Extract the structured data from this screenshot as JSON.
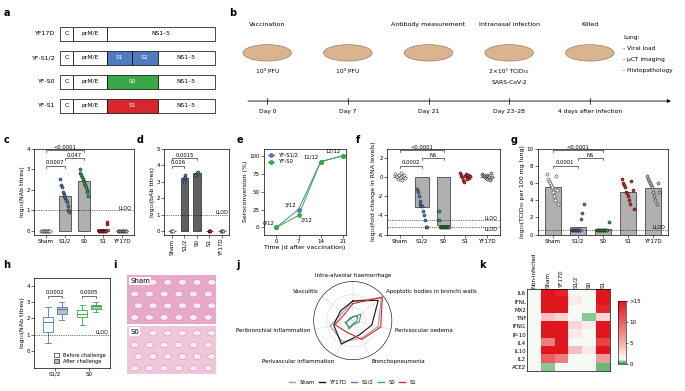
{
  "diagrams": [
    {
      "panel": "a",
      "type": "constructs",
      "constructs": [
        {
          "name": "YF17D",
          "segments": [
            {
              "label": "C"
            },
            {
              "label": "prM/E"
            },
            {
              "label": "NS1–5"
            }
          ]
        },
        {
          "name": "YF-S1/2",
          "segments": [
            {
              "label": "C"
            },
            {
              "label": "prM/E"
            },
            {
              "label": "S1",
              "color": "#4f7cc0"
            },
            {
              "label": "S2",
              "color": "#4f7cc0"
            },
            {
              "label": "NS1–5"
            }
          ]
        },
        {
          "name": "YF-S0",
          "segments": [
            {
              "label": "C"
            },
            {
              "label": "prM/E"
            },
            {
              "label": "S0",
              "color": "#3aa84a"
            },
            {
              "label": "NS1–5"
            }
          ]
        },
        {
          "name": "YF-S1",
          "segments": [
            {
              "label": "C"
            },
            {
              "label": "prM/E"
            },
            {
              "label": "S1",
              "color": "#d8262c"
            },
            {
              "label": "NS1–5"
            }
          ]
        }
      ]
    },
    {
      "panel": "b",
      "type": "timeline",
      "events": [
        {
          "label": "Vaccination",
          "details": [
            "10³ PFU"
          ],
          "time": "Day 0"
        },
        {
          "details": [
            "10³ PFU"
          ],
          "time": "Day 7"
        },
        {
          "label": "Antibody measurement",
          "details": [],
          "time": "Day 21"
        },
        {
          "label": "Intranasal infection",
          "details": [
            "2×10⁵ TCID₅₀",
            "SARS-CoV-2"
          ],
          "time": "Day 23–28"
        },
        {
          "label": "Killed",
          "details": [],
          "time": "4 days after infection"
        }
      ],
      "readout": [
        "Lung:",
        "- Viral load",
        "- µCT imaging",
        "- Histopathology"
      ]
    },
    {
      "panel": "i",
      "type": "images",
      "images": [
        "Sham",
        "S0"
      ]
    }
  ],
  "chart_data": [
    {
      "panel": "c",
      "type": "dot_bar",
      "categories": [
        "Sham",
        "S1/2",
        "S0",
        "S1",
        "YF17D"
      ],
      "colors": [
        "#ffffff",
        "#4f7cc0",
        "#3aa84a",
        "#d8262c",
        "#bfbfbf"
      ],
      "color": "#b0b0b0",
      "values": [
        0,
        1.7,
        2.4,
        0.05,
        0
      ],
      "points": [
        [
          0,
          0,
          0,
          0,
          0,
          0,
          0,
          0,
          0,
          0,
          0,
          0
        ],
        [
          2.5,
          2.2,
          2.1,
          1.9,
          1.8,
          1.7,
          1.6,
          1.5,
          1.4,
          1.2,
          1.0,
          0.9
        ],
        [
          3.0,
          2.8,
          2.7,
          2.6,
          2.5,
          2.4,
          2.3,
          2.2,
          2.1,
          2.0,
          1.9,
          1.7
        ],
        [
          0,
          0,
          0,
          0,
          0,
          0,
          0,
          0,
          0,
          0,
          0.3,
          0.4
        ],
        [
          0,
          0,
          0,
          0,
          0,
          0,
          0,
          0,
          0,
          0,
          0,
          0
        ]
      ],
      "ylabel": "log₁₀(NAb titres)",
      "ylim": [
        -0.2,
        4
      ],
      "yticks": [
        0,
        1,
        2,
        3,
        4
      ],
      "reference_lines": [
        {
          "value": 1,
          "label": "LLOQ"
        }
      ],
      "comparisons": [
        {
          "from": "Sham",
          "to": "S1/2",
          "label": "0.0007"
        },
        {
          "from": "Sham",
          "to": "S0",
          "label": "<0.0001"
        },
        {
          "from": "S1/2",
          "to": "S0",
          "label": "0.047"
        }
      ]
    },
    {
      "panel": "d",
      "type": "dot_bar",
      "categories": [
        "Sham",
        "S1/2",
        "S0",
        "S1",
        "YF17D"
      ],
      "colors": [
        "#ffffff",
        "#4f7cc0",
        "#3aa84a",
        "#d8262c",
        "#bfbfbf"
      ],
      "color": "#606060",
      "values": [
        0,
        3.2,
        3.5,
        0,
        0
      ],
      "points": [
        [
          0,
          0,
          0,
          0
        ],
        [
          3.0,
          3.2,
          3.3,
          3.4
        ],
        [
          3.4,
          3.5,
          3.5,
          3.6
        ],
        [
          0,
          0,
          0,
          0
        ],
        [
          0,
          0,
          0,
          0
        ]
      ],
      "ylabel": "log₁₀(bAb titres)",
      "ylim": [
        -0.2,
        5
      ],
      "yticks": [
        0,
        1,
        2,
        3,
        4,
        5
      ],
      "reference_lines": [
        {
          "value": 1,
          "label": "LLOD"
        }
      ],
      "comparisons": [
        {
          "from": "Sham",
          "to": "S1/2",
          "label": "0.026"
        },
        {
          "from": "Sham",
          "to": "S0",
          "label": "0.0015"
        }
      ]
    },
    {
      "panel": "e",
      "type": "line",
      "x": [
        0,
        7,
        14,
        21
      ],
      "series": [
        {
          "name": "YF-S1/2",
          "color": "#4f7cc0",
          "marker": "circle",
          "values": [
            0,
            25,
            91.7,
            100
          ],
          "value_labels": [
            "0/12",
            "3/12",
            "11/12",
            "12/12"
          ]
        },
        {
          "name": "YF-S0",
          "color": "#3aa84a",
          "marker": "circle",
          "values": [
            0,
            16.7,
            91.7,
            100
          ],
          "value_labels": [
            null,
            "2/12",
            null,
            null
          ]
        }
      ],
      "xlabel": "Time (d after vaccination)",
      "ylabel": "Seroconversion (%)",
      "xlim": [
        -4,
        22
      ],
      "xticks": [
        0,
        7,
        14,
        21
      ],
      "ylim": [
        -10,
        110
      ],
      "yticks": [
        0,
        25,
        50,
        75,
        100
      ],
      "legend": "upper left"
    },
    {
      "panel": "f",
      "type": "dot_bar",
      "categories": [
        "Sham",
        "S1/2",
        "S0",
        "S1",
        "YF17D"
      ],
      "colors": [
        "#ffffff",
        "#4f7cc0",
        "#3aa84a",
        "#d8262c",
        "#bfbfbf"
      ],
      "color": "#b0b0b0",
      "values": [
        0,
        -3.1,
        -5.0,
        0,
        0
      ],
      "points": [
        [
          0.3,
          0.1,
          0,
          -0.2,
          0.2,
          -0.1,
          0.4,
          0,
          -0.3,
          0.1,
          0.2,
          -0.1
        ],
        [
          -1.2,
          -1.5,
          -2,
          -2.5,
          -2.8,
          -3,
          -3,
          -3.5,
          -4,
          -4.5,
          -5.2,
          -5.2
        ],
        [
          -3.5,
          -4.5,
          -5.2,
          -5.2,
          -5.2,
          -5.2,
          -5.2,
          -5.2,
          -5.2,
          -5.2,
          -5.2,
          -5.2
        ],
        [
          0.4,
          0.2,
          0,
          -0.3,
          -0.5,
          0.1,
          0.3,
          -0.2,
          0,
          0.2,
          -0.1,
          0.1
        ],
        [
          0.3,
          0.2,
          0.1,
          0,
          -0.1,
          -0.2,
          0.2,
          0.1,
          0,
          -0.3,
          0.4,
          0
        ]
      ],
      "ylabel": "log₁₀(fold change in RNA levels)",
      "ylim": [
        -6,
        3
      ],
      "yticks": [
        -6,
        -4,
        -2,
        0,
        2
      ],
      "reference_lines": [
        {
          "value": -4.5,
          "label": "LLOQ"
        },
        {
          "value": -5.2,
          "label": "LLOD"
        }
      ],
      "comparisons": [
        {
          "from": "Sham",
          "to": "S1/2",
          "label": "0.0002"
        },
        {
          "from": "Sham",
          "to": "S0",
          "label": "<0.0001"
        },
        {
          "from": "S1/2",
          "to": "S0",
          "label": "NS"
        }
      ]
    },
    {
      "panel": "g",
      "type": "dot_bar",
      "categories": [
        "Sham",
        "S1/2",
        "S0",
        "S1",
        "YF17D"
      ],
      "colors": [
        "#ffffff",
        "#4f7cc0",
        "#3aa84a",
        "#d8262c",
        "#bfbfbf"
      ],
      "color": "#b0b0b0",
      "values": [
        5.5,
        0.9,
        0.6,
        5.0,
        5.4
      ],
      "points": [
        [
          7,
          6.5,
          6.2,
          6,
          5.8,
          5.5,
          5,
          4.5,
          4,
          6.8,
          5.2,
          3.5
        ],
        [
          0.5,
          0.5,
          0.5,
          0.5,
          0.5,
          0.5,
          0.5,
          0.5,
          0.5,
          1.8,
          2.5,
          3.5
        ],
        [
          0.5,
          0.5,
          0.5,
          0.5,
          0.5,
          0.5,
          0.5,
          0.5,
          0.5,
          0.5,
          0.5,
          1.5
        ],
        [
          6.5,
          6,
          5.8,
          5.5,
          5,
          4.8,
          4.5,
          4,
          3.5,
          6.2,
          5.2,
          3
        ],
        [
          6.8,
          6.5,
          6.2,
          6,
          5.8,
          5.5,
          5,
          4.5,
          4,
          3.5,
          6,
          5
        ]
      ],
      "ylabel": "log₁₀(TCID₅₀ per 100 mg lung)",
      "ylim": [
        0,
        10
      ],
      "yticks": [
        0,
        2,
        4,
        6,
        8,
        10
      ],
      "reference_lines": [
        {
          "value": 0.5,
          "label": "LLOD"
        }
      ],
      "comparisons": [
        {
          "from": "Sham",
          "to": "S1/2",
          "label": "0.0001"
        },
        {
          "from": "Sham",
          "to": "S0",
          "label": "<0.0001"
        },
        {
          "from": "S1/2",
          "to": "S0",
          "label": "NS"
        }
      ]
    },
    {
      "panel": "h",
      "type": "box",
      "categories": [
        "S1/2",
        "S0"
      ],
      "colors": [
        "#4f7cc0",
        "#3aa84a"
      ],
      "series": [
        {
          "name": "Before challenge",
          "color": "#ffffff",
          "stats": [
            {
              "min": 0.5,
              "q1": 1.2,
              "median": 1.8,
              "q3": 2.1,
              "max": 2.7
            },
            {
              "min": 1.6,
              "q1": 2.1,
              "median": 2.3,
              "q3": 2.5,
              "max": 2.8
            }
          ]
        },
        {
          "name": "After challenge",
          "color": "#bdbdbd",
          "stats": [
            {
              "min": 1.9,
              "q1": 2.3,
              "median": 2.55,
              "q3": 2.7,
              "max": 3.0
            },
            {
              "min": 2.4,
              "q1": 2.6,
              "median": 2.75,
              "q3": 2.85,
              "max": 3.0
            }
          ]
        }
      ],
      "ylabel": "log₁₀(NAb titres)",
      "ylim": [
        -1,
        4.5
      ],
      "yticks": [
        0,
        1,
        2,
        3,
        4
      ],
      "reference_lines": [
        {
          "value": 1,
          "label": "LLOQ"
        }
      ],
      "comparisons": [
        {
          "category": "S1/2",
          "label": "0.0002"
        },
        {
          "category": "S0",
          "label": "0.0005"
        }
      ],
      "legend": "lower right"
    },
    {
      "panel": "j",
      "type": "radar",
      "categories": [
        "Intra-alveolar haemorrhage",
        "Apoptotic bodies in bronchi walls",
        "Perivascular oedema",
        "Bronchopneumonia",
        "Perivascular inflammation",
        "Peribronchial inflammation",
        "Vasculitis"
      ],
      "series": [
        {
          "name": "Sham",
          "color": "#9e9e9e",
          "values": [
            1.5,
            2.8,
            2.0,
            1.5,
            1.8,
            1.8,
            1.0
          ]
        },
        {
          "name": "YF17D",
          "color": "#111111",
          "values": [
            1.5,
            2.5,
            1.5,
            1.2,
            2.0,
            1.5,
            1.2
          ]
        },
        {
          "name": "S1/2",
          "color": "#4f7cc0",
          "values": [
            0.3,
            0.5,
            0.3,
            0.2,
            0.6,
            0.6,
            0.2
          ]
        },
        {
          "name": "S0",
          "color": "#3aa84a",
          "values": [
            0.3,
            0.8,
            0.5,
            0.3,
            0.7,
            0.5,
            0.3
          ]
        },
        {
          "name": "S1",
          "color": "#d8262c",
          "values": [
            1.3,
            2.9,
            2.2,
            1.6,
            1.0,
            1.4,
            0.8
          ]
        }
      ],
      "ylim": [
        0,
        3
      ],
      "yticks": [
        1,
        2,
        3
      ],
      "tick_labels": false,
      "legend": "lower center"
    },
    {
      "panel": "k",
      "type": "heatmap",
      "rows": [
        "IL6",
        "IFNL",
        "MX2",
        "TNF",
        "IFNG",
        "IP-10",
        "IL4",
        "IL10",
        "IL2",
        "ACE2"
      ],
      "columns": [
        "Non-infected",
        "Sham",
        "YF17D",
        "S1/2",
        "S0",
        "S1"
      ],
      "cells": [
        [
          1,
          16,
          14,
          1,
          1,
          16
        ],
        [
          1,
          16,
          16,
          2,
          1,
          16
        ],
        [
          1,
          15,
          16,
          1,
          1,
          14
        ],
        [
          1,
          4,
          3,
          1,
          0.5,
          3
        ],
        [
          1,
          16,
          16,
          3,
          2,
          16
        ],
        [
          1,
          16,
          16,
          2,
          1,
          16
        ],
        [
          1,
          8,
          16,
          1,
          1,
          12
        ],
        [
          1,
          16,
          16,
          4,
          2,
          16
        ],
        [
          1,
          10,
          8,
          1,
          1,
          6
        ],
        [
          1,
          0.5,
          1,
          1,
          1,
          0.3
        ]
      ],
      "colorbar": {
        "range": [
          0,
          15
        ],
        "ticks": [
          0,
          5,
          10,
          {
            "value": 15,
            "label": ">15"
          }
        ]
      }
    }
  ]
}
